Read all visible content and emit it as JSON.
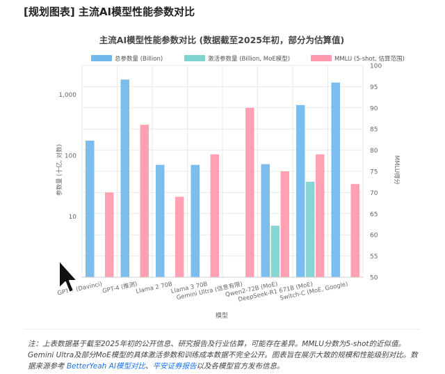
{
  "page": {
    "heading": "[规划图表] 主流AI模型性能参数对比"
  },
  "colors": {
    "total": "#70b8ec",
    "active": "#7dd3cf",
    "mmlu": "#ff99ad",
    "grid": "#e9e9e9",
    "axis_text": "#666666"
  },
  "chart_data": {
    "type": "bar",
    "title": "主流AI模型性能参数对比 (数据截至2025年初，部分为估算值)",
    "xlabel": "模型",
    "ylabel_left": "参数量 (十亿, 对数)",
    "ylabel_right": "MMLU得分",
    "y_left_scale": "log",
    "y_left_lim": [
      1,
      3000
    ],
    "y_left_ticks": [
      "10",
      "100",
      "1,000"
    ],
    "y_right_lim": [
      50,
      100
    ],
    "y_right_ticks": [
      "50",
      "55",
      "60",
      "65",
      "70",
      "75",
      "80",
      "85",
      "90",
      "95",
      "100"
    ],
    "grid": true,
    "legend_position": "top",
    "categories": [
      "GPT-3 (Davinci)",
      "GPT-4 (推测)",
      "Llama 2 70B",
      "Llama 3 70B",
      "Gemini Ultra (信息有限)",
      "Qwen2-72B (MoE)",
      "DeepSeek-R1 671B (MoE)",
      "Switch-C (MoE, Google)"
    ],
    "series": [
      {
        "name": "总参数量 (Billion)",
        "axis": "left",
        "values": [
          175,
          1760,
          70,
          70,
          null,
          72,
          671,
          1571
        ]
      },
      {
        "name": "激活参数量 (Billion, MoE模型)",
        "axis": "left",
        "values": [
          null,
          null,
          null,
          null,
          null,
          7,
          37,
          null
        ]
      },
      {
        "name": "MMLU (5-shot, 估算范围)",
        "axis": "right",
        "values": [
          70,
          86,
          69,
          79,
          90,
          75,
          79,
          72
        ]
      }
    ]
  },
  "note": {
    "text_1": "注：上表数据基于截至2025年初的公开信息、研究报告及行业估算，可能存在差异。MMLU分数为5-shot的近似值。Gemini Ultra及部分MoE模型的具体激活参数和训练成本数据不完全公开。图表旨在展示大致的规模和性能级别对比。数据来源参考",
    "link_1": "BetterYeah AI模型对比",
    "sep": "、",
    "link_2": "平安证券报告",
    "text_2": "以及各模型官方发布信息。"
  }
}
